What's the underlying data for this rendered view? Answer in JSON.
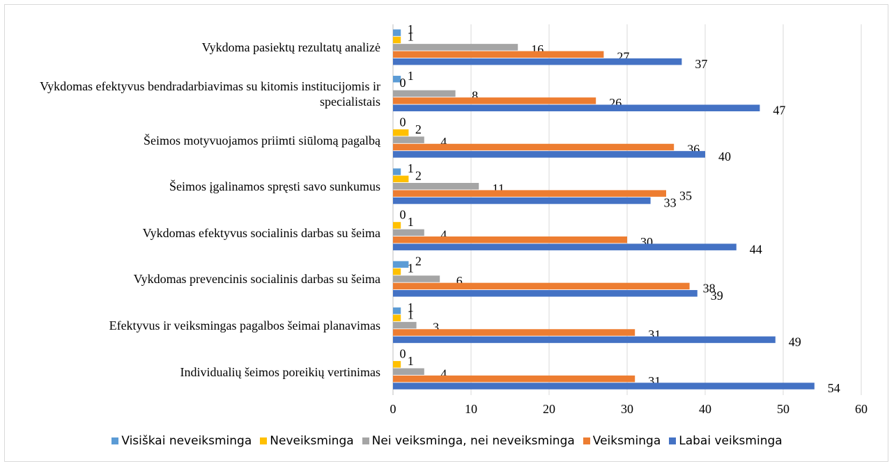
{
  "chart_data": {
    "type": "hbar",
    "categories": [
      "Vykdoma pasiektų rezultatų analizė",
      "Vykdomas efektyvus bendradarbiavimas su kitomis institucijomis ir specialistais",
      "Šeimos motyvuojamos priimti siūlomą pagalbą",
      "Šeimos įgalinamos spręsti savo sunkumus",
      "Vykdomas efektyvus socialinis darbas su šeima",
      "Vykdomas prevencinis socialinis darbas su šeima",
      "Efektyvus ir veiksmingas pagalbos šeimai planavimas",
      "Individualių šeimos poreikių vertinimas"
    ],
    "series": [
      {
        "name": "Visiškai neveiksminga",
        "color": "#5b9bd5",
        "values": [
          1,
          1,
          0,
          1,
          0,
          2,
          1,
          0
        ]
      },
      {
        "name": "Neveiksminga",
        "color": "#ffc000",
        "values": [
          1,
          0,
          2,
          2,
          1,
          1,
          1,
          1
        ]
      },
      {
        "name": "Nei veiksminga, nei neveiksminga",
        "color": "#a5a5a5",
        "values": [
          16,
          8,
          4,
          11,
          4,
          6,
          3,
          4
        ]
      },
      {
        "name": "Veiksminga",
        "color": "#ed7d31",
        "values": [
          27,
          26,
          36,
          35,
          30,
          38,
          31,
          31
        ]
      },
      {
        "name": "Labai veiksminga",
        "color": "#4472c4",
        "values": [
          37,
          47,
          40,
          33,
          44,
          39,
          49,
          54
        ]
      }
    ],
    "xlim": [
      0,
      60
    ],
    "xticks": [
      0,
      10,
      20,
      30,
      40,
      50,
      60
    ],
    "grid": true,
    "legend": "bottom"
  }
}
